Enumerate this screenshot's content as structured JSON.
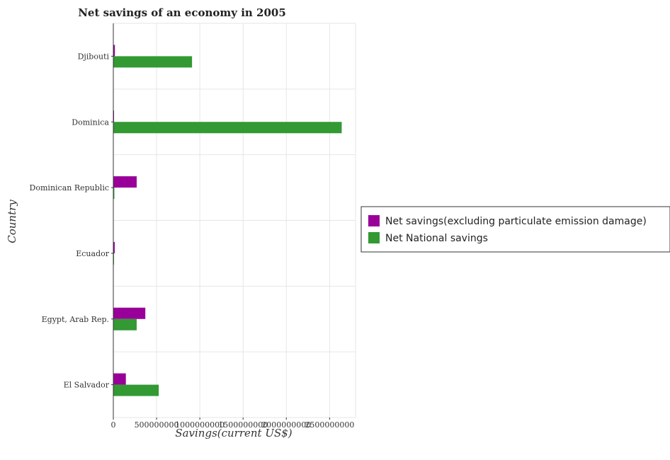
{
  "chart_data": {
    "type": "bar",
    "orientation": "horizontal",
    "title": "Net savings of an economy in 2005",
    "xlabel": "Savings(current US$)",
    "ylabel": "Country",
    "categories": [
      "Djibouti",
      "Dominica",
      "Dominican Republic",
      "Ecuador",
      "Egypt, Arab Rep.",
      "El Salvador"
    ],
    "x_ticks": [
      0,
      500000000,
      1000000000,
      1500000000,
      2000000000,
      2500000000
    ],
    "x_tick_labels": [
      "0",
      "500000000",
      "1000000000",
      "1500000000",
      "2000000000",
      "2500000000"
    ],
    "xlim": [
      0,
      2800000000
    ],
    "series": [
      {
        "name": "Net savings(excluding particulate emission damage)",
        "color": "#990099",
        "values": [
          18000000,
          2000000,
          270000000,
          16000000,
          370000000,
          145000000
        ]
      },
      {
        "name": "Net National savings",
        "color": "#339933",
        "values": [
          910000000,
          2640000000,
          12000000,
          1000000,
          270000000,
          525000000
        ]
      }
    ],
    "grid": true,
    "legend_position": "right"
  }
}
